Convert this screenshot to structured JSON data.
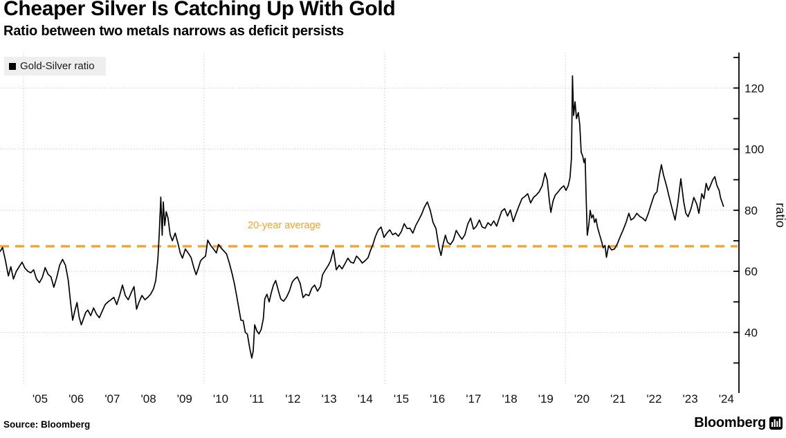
{
  "header": {
    "title": "Cheaper Silver Is Catching Up With Gold",
    "subtitle": "Ratio between two metals narrows as deficit persists"
  },
  "legend": {
    "label": "Gold-Silver ratio",
    "swatch_color": "#000000"
  },
  "footer": {
    "source": "Source: Bloomberg",
    "brand": "Bloomberg"
  },
  "colors": {
    "line": "#000000",
    "average": "#F7A228",
    "grid": "#c9c9c9",
    "axis": "#000000",
    "legend_bg": "#eeeeee"
  },
  "chart_data": {
    "type": "line",
    "title": "Cheaper Silver Is Catching Up With Gold",
    "subtitle": "Ratio between two metals narrows as deficit persists",
    "ylabel": "ratio",
    "xlabel": "",
    "ylim": [
      20,
      132
    ],
    "xlim": [
      2004.35,
      2024.55
    ],
    "grid": "dotted",
    "legend_position": "top-left",
    "axis_side": "right",
    "y_ticks_labeled": [
      40,
      60,
      80,
      100,
      120
    ],
    "y_ticks_minor": [
      30,
      50,
      70,
      90,
      110,
      130
    ],
    "x_gridline_years": [
      2005,
      2010,
      2015,
      2020
    ],
    "x_year_labels": [
      "'05",
      "'06",
      "'07",
      "'08",
      "'09",
      "'10",
      "'11",
      "'12",
      "'13",
      "'14",
      "'15",
      "'16",
      "'17",
      "'18",
      "'19",
      "'20",
      "'21",
      "'22",
      "'23",
      "'24"
    ],
    "average_line": {
      "label": "20-year average",
      "value": 68.2,
      "color": "#F7A228",
      "style": "dashed"
    },
    "series": [
      {
        "name": "Gold-Silver ratio",
        "color": "#000000",
        "points": [
          [
            2004.35,
            66.5
          ],
          [
            2004.42,
            67.8
          ],
          [
            2004.5,
            63.5
          ],
          [
            2004.58,
            58.5
          ],
          [
            2004.65,
            61.5
          ],
          [
            2004.72,
            57.5
          ],
          [
            2004.8,
            60
          ],
          [
            2004.88,
            61.5
          ],
          [
            2004.96,
            63
          ],
          [
            2005.04,
            61
          ],
          [
            2005.12,
            60
          ],
          [
            2005.2,
            59.5
          ],
          [
            2005.28,
            60.5
          ],
          [
            2005.36,
            57.5
          ],
          [
            2005.44,
            56.3
          ],
          [
            2005.52,
            58
          ],
          [
            2005.6,
            61.2
          ],
          [
            2005.68,
            59
          ],
          [
            2005.76,
            58.2
          ],
          [
            2005.84,
            54.8
          ],
          [
            2005.92,
            58
          ],
          [
            2006,
            62
          ],
          [
            2006.08,
            63.9
          ],
          [
            2006.16,
            62
          ],
          [
            2006.24,
            57
          ],
          [
            2006.3,
            50
          ],
          [
            2006.36,
            44
          ],
          [
            2006.42,
            47
          ],
          [
            2006.48,
            49.8
          ],
          [
            2006.54,
            45
          ],
          [
            2006.6,
            42.5
          ],
          [
            2006.66,
            44.5
          ],
          [
            2006.72,
            46.5
          ],
          [
            2006.78,
            47.3
          ],
          [
            2006.86,
            45.5
          ],
          [
            2006.94,
            48
          ],
          [
            2007.02,
            46
          ],
          [
            2007.1,
            44.8
          ],
          [
            2007.18,
            47
          ],
          [
            2007.26,
            49.1
          ],
          [
            2007.34,
            50
          ],
          [
            2007.42,
            50.7
          ],
          [
            2007.5,
            51.5
          ],
          [
            2007.58,
            49.1
          ],
          [
            2007.66,
            52.1
          ],
          [
            2007.74,
            55.5
          ],
          [
            2007.82,
            52
          ],
          [
            2007.9,
            50.7
          ],
          [
            2007.98,
            53
          ],
          [
            2008.06,
            55
          ],
          [
            2008.13,
            47.6
          ],
          [
            2008.2,
            50
          ],
          [
            2008.28,
            52.1
          ],
          [
            2008.36,
            50.7
          ],
          [
            2008.44,
            51.5
          ],
          [
            2008.52,
            52.5
          ],
          [
            2008.6,
            54.3
          ],
          [
            2008.66,
            57
          ],
          [
            2008.72,
            64
          ],
          [
            2008.76,
            73
          ],
          [
            2008.8,
            84.3
          ],
          [
            2008.84,
            71.8
          ],
          [
            2008.87,
            82.7
          ],
          [
            2008.91,
            75
          ],
          [
            2008.95,
            79.5
          ],
          [
            2009,
            77.5
          ],
          [
            2009.06,
            72
          ],
          [
            2009.12,
            70
          ],
          [
            2009.2,
            72.5
          ],
          [
            2009.28,
            69
          ],
          [
            2009.34,
            66
          ],
          [
            2009.4,
            64.3
          ],
          [
            2009.48,
            67.3
          ],
          [
            2009.56,
            66
          ],
          [
            2009.64,
            64.5
          ],
          [
            2009.72,
            61
          ],
          [
            2009.78,
            58.9
          ],
          [
            2009.84,
            61
          ],
          [
            2009.9,
            63.4
          ],
          [
            2009.96,
            64.2
          ],
          [
            2010.04,
            65
          ],
          [
            2010.1,
            70.2
          ],
          [
            2010.18,
            68.5
          ],
          [
            2010.26,
            67.3
          ],
          [
            2010.34,
            66
          ],
          [
            2010.4,
            68.8
          ],
          [
            2010.48,
            67.5
          ],
          [
            2010.56,
            66.5
          ],
          [
            2010.62,
            65.7
          ],
          [
            2010.7,
            62.7
          ],
          [
            2010.78,
            59
          ],
          [
            2010.84,
            55.9
          ],
          [
            2010.9,
            52
          ],
          [
            2010.96,
            48
          ],
          [
            2011.02,
            44
          ],
          [
            2011.08,
            43.9
          ],
          [
            2011.14,
            40
          ],
          [
            2011.2,
            39.4
          ],
          [
            2011.26,
            35
          ],
          [
            2011.32,
            31.6
          ],
          [
            2011.36,
            34
          ],
          [
            2011.4,
            42.5
          ],
          [
            2011.46,
            40.5
          ],
          [
            2011.52,
            39.5
          ],
          [
            2011.58,
            41
          ],
          [
            2011.64,
            44.5
          ],
          [
            2011.68,
            51
          ],
          [
            2011.74,
            52.5
          ],
          [
            2011.8,
            50
          ],
          [
            2011.86,
            53
          ],
          [
            2011.92,
            55.5
          ],
          [
            2011.98,
            57
          ],
          [
            2012.06,
            53.5
          ],
          [
            2012.12,
            51
          ],
          [
            2012.2,
            50.2
          ],
          [
            2012.28,
            51.5
          ],
          [
            2012.36,
            53.5
          ],
          [
            2012.44,
            56.5
          ],
          [
            2012.5,
            57.4
          ],
          [
            2012.58,
            58.2
          ],
          [
            2012.66,
            56
          ],
          [
            2012.74,
            51.4
          ],
          [
            2012.82,
            52.5
          ],
          [
            2012.9,
            52
          ],
          [
            2012.98,
            54.5
          ],
          [
            2013.06,
            55.5
          ],
          [
            2013.14,
            53.5
          ],
          [
            2013.22,
            55
          ],
          [
            2013.28,
            58.9
          ],
          [
            2013.36,
            60.5
          ],
          [
            2013.44,
            62
          ],
          [
            2013.5,
            63.4
          ],
          [
            2013.58,
            67
          ],
          [
            2013.66,
            60.5
          ],
          [
            2013.74,
            62
          ],
          [
            2013.82,
            60.8
          ],
          [
            2013.9,
            62.5
          ],
          [
            2013.98,
            64.3
          ],
          [
            2014.06,
            63
          ],
          [
            2014.14,
            62.7
          ],
          [
            2014.22,
            65
          ],
          [
            2014.3,
            64
          ],
          [
            2014.38,
            62.7
          ],
          [
            2014.46,
            63.5
          ],
          [
            2014.54,
            64.5
          ],
          [
            2014.6,
            66.6
          ],
          [
            2014.68,
            69
          ],
          [
            2014.74,
            71.3
          ],
          [
            2014.82,
            73.5
          ],
          [
            2014.9,
            74.5
          ],
          [
            2014.98,
            71.1
          ],
          [
            2015.06,
            72.5
          ],
          [
            2015.14,
            73.6
          ],
          [
            2015.22,
            72
          ],
          [
            2015.3,
            72.5
          ],
          [
            2015.38,
            71.5
          ],
          [
            2015.46,
            73
          ],
          [
            2015.54,
            75.6
          ],
          [
            2015.62,
            74
          ],
          [
            2015.7,
            74.1
          ],
          [
            2015.78,
            72.5
          ],
          [
            2015.86,
            75
          ],
          [
            2015.94,
            76.8
          ],
          [
            2016.02,
            78.6
          ],
          [
            2016.1,
            81
          ],
          [
            2016.18,
            82.7
          ],
          [
            2016.26,
            80
          ],
          [
            2016.34,
            76
          ],
          [
            2016.42,
            74
          ],
          [
            2016.5,
            68
          ],
          [
            2016.56,
            65.2
          ],
          [
            2016.62,
            69
          ],
          [
            2016.68,
            71.8
          ],
          [
            2016.74,
            69.5
          ],
          [
            2016.82,
            68.8
          ],
          [
            2016.9,
            70.2
          ],
          [
            2016.98,
            73.4
          ],
          [
            2017.06,
            71.8
          ],
          [
            2017.14,
            70.5
          ],
          [
            2017.22,
            72
          ],
          [
            2017.3,
            75.5
          ],
          [
            2017.38,
            77.4
          ],
          [
            2017.46,
            73.8
          ],
          [
            2017.54,
            74.8
          ],
          [
            2017.62,
            76.8
          ],
          [
            2017.7,
            74.5
          ],
          [
            2017.78,
            74.1
          ],
          [
            2017.86,
            75.9
          ],
          [
            2017.94,
            75
          ],
          [
            2018.02,
            76.5
          ],
          [
            2018.1,
            74.8
          ],
          [
            2018.16,
            77
          ],
          [
            2018.24,
            79.7
          ],
          [
            2018.32,
            80.5
          ],
          [
            2018.4,
            78.1
          ],
          [
            2018.48,
            80.1
          ],
          [
            2018.56,
            76.3
          ],
          [
            2018.64,
            79
          ],
          [
            2018.72,
            81.5
          ],
          [
            2018.8,
            83.8
          ],
          [
            2018.88,
            84.5
          ],
          [
            2018.96,
            85.4
          ],
          [
            2019.04,
            82.4
          ],
          [
            2019.12,
            84.2
          ],
          [
            2019.2,
            85
          ],
          [
            2019.28,
            86.1
          ],
          [
            2019.36,
            88
          ],
          [
            2019.44,
            92.2
          ],
          [
            2019.5,
            89.9
          ],
          [
            2019.56,
            83.1
          ],
          [
            2019.6,
            79.3
          ],
          [
            2019.66,
            83
          ],
          [
            2019.72,
            84.9
          ],
          [
            2019.8,
            86
          ],
          [
            2019.88,
            87.2
          ],
          [
            2019.96,
            88
          ],
          [
            2020.02,
            86.5
          ],
          [
            2020.08,
            88
          ],
          [
            2020.13,
            90.6
          ],
          [
            2020.17,
            97
          ],
          [
            2020.2,
            124
          ],
          [
            2020.23,
            111
          ],
          [
            2020.27,
            115.5
          ],
          [
            2020.31,
            110
          ],
          [
            2020.36,
            112
          ],
          [
            2020.4,
            108
          ],
          [
            2020.44,
            99
          ],
          [
            2020.48,
            97.8
          ],
          [
            2020.52,
            95.6
          ],
          [
            2020.55,
            97
          ],
          [
            2020.58,
            83
          ],
          [
            2020.61,
            71.8
          ],
          [
            2020.65,
            75
          ],
          [
            2020.69,
            80
          ],
          [
            2020.73,
            77.5
          ],
          [
            2020.77,
            78.5
          ],
          [
            2020.81,
            76
          ],
          [
            2020.85,
            77.2
          ],
          [
            2020.89,
            74.5
          ],
          [
            2020.95,
            72
          ],
          [
            2021,
            70
          ],
          [
            2021.05,
            67.7
          ],
          [
            2021.1,
            68.5
          ],
          [
            2021.14,
            64.6
          ],
          [
            2021.2,
            68.4
          ],
          [
            2021.28,
            67
          ],
          [
            2021.36,
            67.3
          ],
          [
            2021.44,
            69
          ],
          [
            2021.52,
            71.3
          ],
          [
            2021.6,
            73.5
          ],
          [
            2021.68,
            75.9
          ],
          [
            2021.76,
            79
          ],
          [
            2021.82,
            76.8
          ],
          [
            2021.9,
            77.5
          ],
          [
            2021.98,
            79
          ],
          [
            2022.06,
            78
          ],
          [
            2022.14,
            77.4
          ],
          [
            2022.22,
            76.5
          ],
          [
            2022.3,
            79
          ],
          [
            2022.38,
            82
          ],
          [
            2022.46,
            84.9
          ],
          [
            2022.54,
            86.1
          ],
          [
            2022.6,
            91
          ],
          [
            2022.66,
            94.9
          ],
          [
            2022.72,
            91.5
          ],
          [
            2022.8,
            88.1
          ],
          [
            2022.88,
            84.2
          ],
          [
            2022.96,
            80.4
          ],
          [
            2023.04,
            76.8
          ],
          [
            2023.12,
            82.7
          ],
          [
            2023.2,
            90.3
          ],
          [
            2023.28,
            82.7
          ],
          [
            2023.34,
            79
          ],
          [
            2023.4,
            77.9
          ],
          [
            2023.48,
            80.5
          ],
          [
            2023.56,
            84.2
          ],
          [
            2023.64,
            82
          ],
          [
            2023.7,
            79
          ],
          [
            2023.78,
            85.4
          ],
          [
            2023.84,
            83.8
          ],
          [
            2023.9,
            88.8
          ],
          [
            2023.96,
            86.5
          ],
          [
            2024.02,
            88.1
          ],
          [
            2024.08,
            89.9
          ],
          [
            2024.14,
            91
          ],
          [
            2024.2,
            88.1
          ],
          [
            2024.26,
            86.5
          ],
          [
            2024.3,
            84
          ],
          [
            2024.34,
            82.7
          ],
          [
            2024.38,
            81.3
          ]
        ]
      }
    ]
  }
}
